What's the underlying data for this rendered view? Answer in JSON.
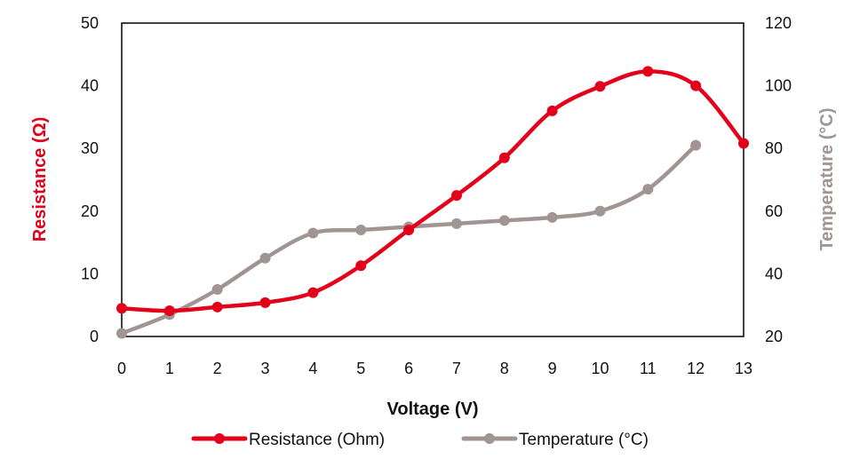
{
  "chart_data": {
    "type": "line",
    "xlabel": "Voltage (V)",
    "ylabel": "Resistance (Ω)",
    "y2label": "Temperature (°C)",
    "xlim": [
      0,
      13
    ],
    "ylim": [
      0,
      50
    ],
    "y2lim": [
      20,
      120
    ],
    "x_ticks": [
      0,
      1,
      2,
      3,
      4,
      5,
      6,
      7,
      8,
      9,
      10,
      11,
      12,
      13
    ],
    "y_ticks": [
      0,
      10,
      20,
      30,
      40,
      50
    ],
    "y2_ticks": [
      20,
      40,
      60,
      80,
      100,
      120
    ],
    "grid": false,
    "legend_position": "bottom",
    "smooth": true,
    "series": [
      {
        "name": "Resistance (Ohm)",
        "axis": "left",
        "color": "#e3001b",
        "x": [
          0,
          1,
          2,
          3,
          4,
          5,
          6,
          7,
          8,
          9,
          10,
          11,
          12,
          13
        ],
        "values": [
          4.5,
          4.1,
          4.7,
          5.4,
          7.0,
          11.3,
          17.0,
          22.5,
          28.5,
          36.0,
          39.9,
          42.3,
          40.0,
          30.8
        ]
      },
      {
        "name": "Temperature (°C)",
        "axis": "right",
        "color": "#a09593",
        "x": [
          0,
          1,
          2,
          3,
          4,
          5,
          6,
          7,
          8,
          9,
          10,
          11,
          12
        ],
        "values": [
          21,
          27,
          35,
          45,
          53,
          54,
          55,
          56,
          57,
          58,
          60,
          67,
          81
        ]
      }
    ]
  }
}
